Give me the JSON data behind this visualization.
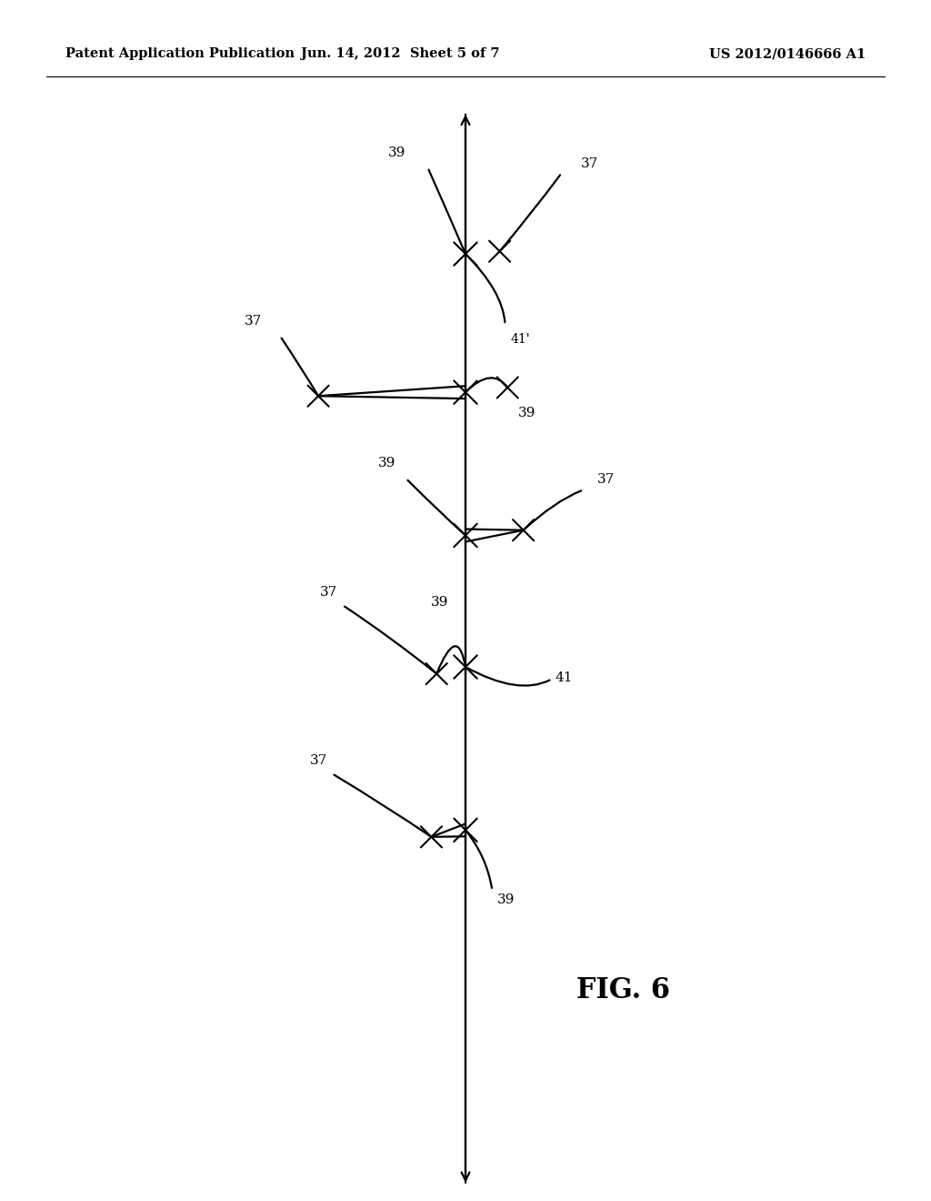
{
  "bg_color": "#ffffff",
  "header_left": "Patent Application Publication",
  "header_center": "Jun. 14, 2012  Sheet 5 of 7",
  "header_right": "US 2012/0146666 A1",
  "fig_label": "FIG. 6",
  "line_color": "#000000",
  "text_color": "#000000",
  "fontsize_header": 10.5,
  "fontsize_label": 11,
  "fontsize_fig": 22,
  "nodes": [
    {
      "y": 7.5,
      "type": "top_cross"
    },
    {
      "y": 4.8,
      "type": "wide_left"
    },
    {
      "y": 2.2,
      "type": "right_cross"
    },
    {
      "y": -0.4,
      "type": "left_cross_41"
    },
    {
      "y": -3.5,
      "type": "bottom_v"
    }
  ]
}
